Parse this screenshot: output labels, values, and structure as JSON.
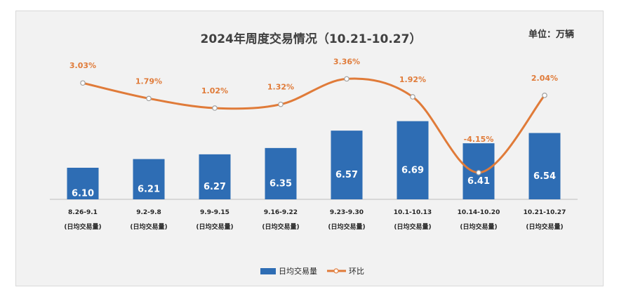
{
  "chart_data": {
    "type": "bar",
    "title": "2024年周度交易情况（10.21-10.27）",
    "unit_label": "单位：万辆",
    "categories": [
      [
        "8.26-9.1",
        "(日均交易量)"
      ],
      [
        "9.2-9.8",
        "(日均交易量)"
      ],
      [
        "9.9-9.15",
        "(日均交易量)"
      ],
      [
        "9.16-9.22",
        "(日均交易量)"
      ],
      [
        "9.23-9.30",
        "(日均交易量)"
      ],
      [
        "10.1-10.13",
        "(日均交易量)"
      ],
      [
        "10.14-10.20",
        "(日均交易量)"
      ],
      [
        "10.21-10.27",
        "(日均交易量)"
      ]
    ],
    "series": [
      {
        "name": "日均交易量",
        "type": "bar",
        "values": [
          6.1,
          6.21,
          6.27,
          6.35,
          6.57,
          6.69,
          6.41,
          6.54
        ],
        "labels": [
          "6.10",
          "6.21",
          "6.27",
          "6.35",
          "6.57",
          "6.69",
          "6.41",
          "6.54"
        ],
        "color": "#2e6db4"
      },
      {
        "name": "环比",
        "type": "line",
        "values": [
          3.03,
          1.79,
          1.02,
          1.32,
          3.36,
          1.92,
          -4.15,
          2.04
        ],
        "labels": [
          "3.03%",
          "1.79%",
          "1.02%",
          "1.32%",
          "3.36%",
          "1.92%",
          "-4.15%",
          "2.04%"
        ],
        "color": "#e07b39"
      }
    ],
    "legend_position": "bottom-center",
    "grid": false
  }
}
